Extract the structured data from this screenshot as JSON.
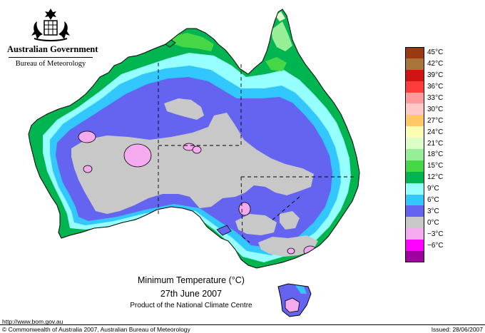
{
  "header": {
    "government": "Australian Government",
    "bureau": "Bureau of Meteorology"
  },
  "legend": {
    "items": [
      {
        "label": "45°C",
        "color": "#9b3a12"
      },
      {
        "label": "42°C",
        "color": "#a8753a"
      },
      {
        "label": "39°C",
        "color": "#d01414"
      },
      {
        "label": "36°C",
        "color": "#ff3c3c"
      },
      {
        "label": "33°C",
        "color": "#ff9a9a"
      },
      {
        "label": "30°C",
        "color": "#ffc9c9"
      },
      {
        "label": "27°C",
        "color": "#ffc864"
      },
      {
        "label": "24°C",
        "color": "#ffffb4"
      },
      {
        "label": "21°C",
        "color": "#dcffc8"
      },
      {
        "label": "18°C",
        "color": "#96ee96"
      },
      {
        "label": "15°C",
        "color": "#46d746"
      },
      {
        "label": "12°C",
        "color": "#00b450"
      },
      {
        "label": "9°C",
        "color": "#96ffff"
      },
      {
        "label": "6°C",
        "color": "#32c8ff"
      },
      {
        "label": "3°C",
        "color": "#6464f0"
      },
      {
        "label": "0°C",
        "color": "#c8c8c8"
      },
      {
        "label": "−3°C",
        "color": "#f5aaf0"
      },
      {
        "label": "−6°C",
        "color": "#ff00ff"
      },
      {
        "label": "",
        "color": "#a000a0"
      }
    ]
  },
  "caption": {
    "title": "Minimum Temperature (°C)",
    "date": "27th June 2007",
    "product": "Product of the National Climate Centre"
  },
  "footer": {
    "url": "http://www.bom.gov.au",
    "copyright": "© Commonwealth of Australia 2007, Australian Bureau of Meteorology",
    "issued": "Issued: 28/06/2007"
  }
}
